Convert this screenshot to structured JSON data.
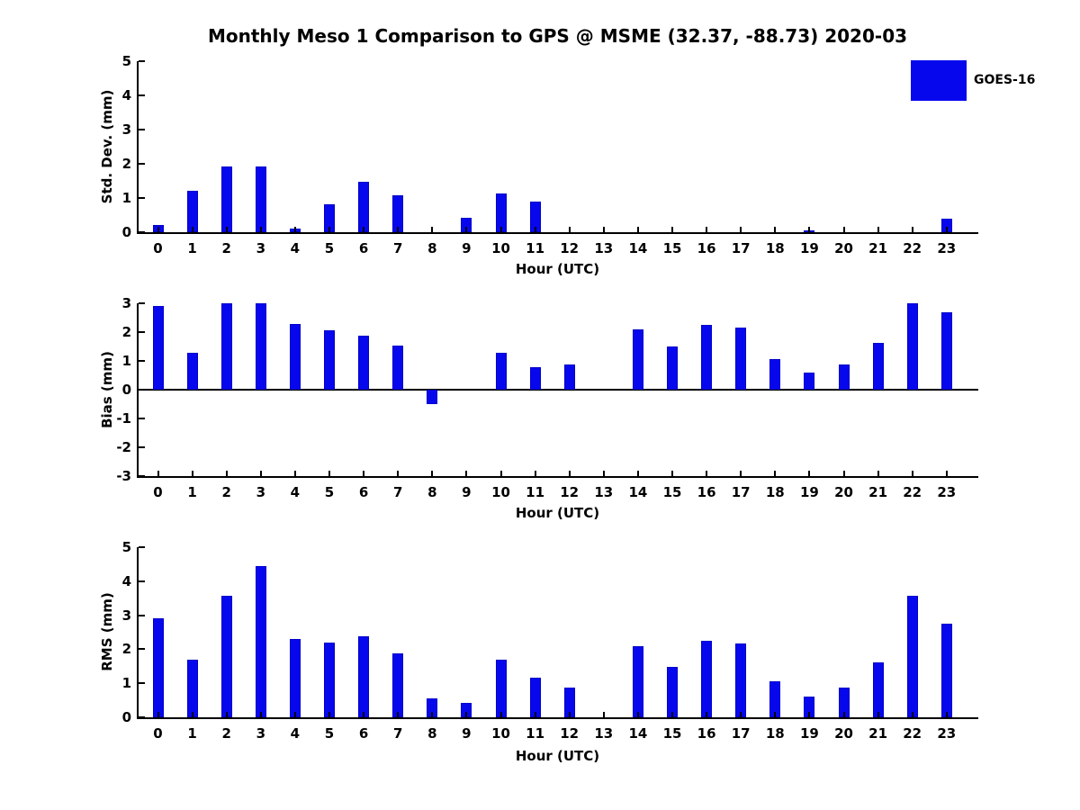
{
  "title": "Monthly Meso 1 Comparison to GPS @ MSME (32.37, -88.73) 2020-03",
  "legend": {
    "label": "GOES-16",
    "color": "#0707EE"
  },
  "colors": {
    "bar": "#0707EE",
    "bar_edge": "#0000C8",
    "axis": "#000000"
  },
  "chart_data": [
    {
      "type": "bar",
      "title": "Monthly Meso 1 Comparison to GPS @ MSME (32.37, -88.73) 2020-03",
      "xlabel": "Hour (UTC)",
      "ylabel": "Std. Dev. (mm)",
      "categories": [
        0,
        1,
        2,
        3,
        4,
        5,
        6,
        7,
        8,
        9,
        10,
        11,
        12,
        13,
        14,
        15,
        16,
        17,
        18,
        19,
        20,
        21,
        22,
        23
      ],
      "series": [
        {
          "name": "GOES-16",
          "values": [
            0.2,
            1.2,
            1.93,
            1.93,
            0.1,
            0.82,
            1.48,
            1.08,
            0,
            0.43,
            1.13,
            0.9,
            0,
            0,
            0,
            0,
            0,
            0,
            0,
            0.04,
            0,
            0,
            0,
            0.4
          ]
        }
      ],
      "ylim": [
        0,
        5
      ],
      "yticks": [
        0,
        1,
        2,
        3,
        4,
        5
      ],
      "grid": false,
      "legend_position": "top-right"
    },
    {
      "type": "bar",
      "title": "",
      "xlabel": "Hour (UTC)",
      "ylabel": "Bias (mm)",
      "categories": [
        0,
        1,
        2,
        3,
        4,
        5,
        6,
        7,
        8,
        9,
        10,
        11,
        12,
        13,
        14,
        15,
        16,
        17,
        18,
        19,
        20,
        21,
        22,
        23
      ],
      "series": [
        {
          "name": "GOES-16",
          "values": [
            2.9,
            1.27,
            3.0,
            3.0,
            2.28,
            2.05,
            1.88,
            1.54,
            -0.5,
            0,
            1.27,
            0.78,
            0.88,
            0,
            2.1,
            1.5,
            2.25,
            2.15,
            1.05,
            0.6,
            0.87,
            1.62,
            3.0,
            2.7
          ]
        }
      ],
      "ylim": [
        -3,
        3
      ],
      "yticks": [
        -3,
        -2,
        -1,
        0,
        1,
        2,
        3
      ],
      "zero_line": true,
      "grid": false
    },
    {
      "type": "bar",
      "title": "",
      "xlabel": "Hour (UTC)",
      "ylabel": "RMS (mm)",
      "categories": [
        0,
        1,
        2,
        3,
        4,
        5,
        6,
        7,
        8,
        9,
        10,
        11,
        12,
        13,
        14,
        15,
        16,
        17,
        18,
        19,
        20,
        21,
        22,
        23
      ],
      "series": [
        {
          "name": "GOES-16",
          "values": [
            2.9,
            1.7,
            3.58,
            4.45,
            2.3,
            2.2,
            2.38,
            1.87,
            0.55,
            0.42,
            1.68,
            1.16,
            0.88,
            0,
            2.1,
            1.47,
            2.25,
            2.18,
            1.05,
            0.62,
            0.87,
            1.62,
            3.57,
            2.74
          ]
        }
      ],
      "ylim": [
        0,
        5
      ],
      "yticks": [
        0,
        1,
        2,
        3,
        4,
        5
      ],
      "grid": false
    }
  ]
}
